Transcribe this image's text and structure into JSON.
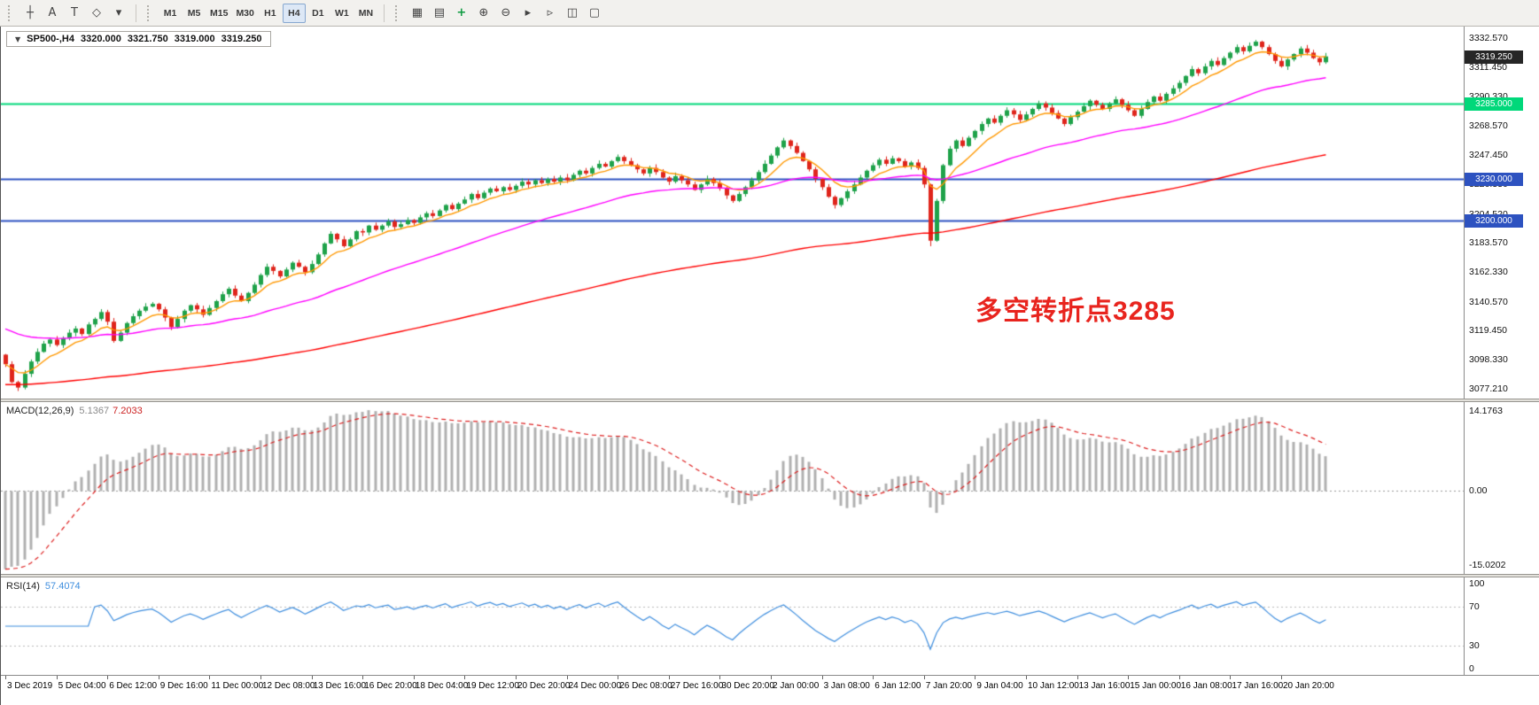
{
  "icons": {
    "collapse_arrow": "▼"
  },
  "toolbar": {
    "left_tools": [
      {
        "name": "crosshair",
        "glyph": "┼"
      },
      {
        "name": "text-label",
        "glyph": "A"
      },
      {
        "name": "text",
        "glyph": "T"
      },
      {
        "name": "shapes",
        "glyph": "◇"
      },
      {
        "name": "shapes-dropdown",
        "glyph": "▾"
      }
    ],
    "timeframes": [
      "M1",
      "M5",
      "M15",
      "M30",
      "H1",
      "H4",
      "D1",
      "W1",
      "MN"
    ],
    "active_timeframe": "H4",
    "right_tools": [
      {
        "name": "new-chart",
        "glyph": "▦"
      },
      {
        "name": "profiles",
        "glyph": "▤"
      },
      {
        "name": "indicators",
        "glyph": "+",
        "color": "#0c9a40"
      },
      {
        "name": "zoom-in",
        "glyph": "⊕"
      },
      {
        "name": "zoom-out",
        "glyph": "⊖"
      },
      {
        "name": "auto-scroll",
        "glyph": "▸"
      },
      {
        "name": "chart-shift",
        "glyph": "▹"
      },
      {
        "name": "tile-windows",
        "glyph": "◫"
      },
      {
        "name": "cascade-windows",
        "glyph": "▢"
      }
    ]
  },
  "symbol_header": {
    "symbol": "SP500-,H4",
    "open": "3320.000",
    "high": "3321.750",
    "low": "3319.000",
    "close": "3319.250"
  },
  "price_axis": {
    "min": 3070,
    "max": 3341,
    "ticks": [
      "3332.570",
      "3311.450",
      "3290.330",
      "3268.570",
      "3247.450",
      "3226.330",
      "3204.520",
      "3183.570",
      "3162.330",
      "3140.570",
      "3119.450",
      "3098.330",
      "3077.210"
    ]
  },
  "hlines": [
    {
      "price": 3285.0,
      "label": "3285.000",
      "color": "#00d87a",
      "width": 2
    },
    {
      "price": 3230.0,
      "label": "3230.000",
      "color": "#2d52c0",
      "width": 2
    },
    {
      "price": 3200.0,
      "label": "3200.000",
      "color": "#2d52c0",
      "width": 2
    }
  ],
  "current_price": {
    "value": 3319.25,
    "label": "3319.250",
    "bg": "#262626"
  },
  "annotation": {
    "text": "多空转折点3285",
    "color": "#e8241e"
  },
  "macd": {
    "name": "MACD(12,26,9)",
    "value_main": "5.1367",
    "value_signal": "7.2033",
    "axis": {
      "max": "14.1763",
      "zero": "0.00",
      "min": "-15.0202"
    }
  },
  "rsi": {
    "name": "RSI(14)",
    "value": "57.4074",
    "axis": [
      "100",
      "70",
      "30",
      "0"
    ],
    "levels": [
      70,
      30
    ]
  },
  "chart_data": {
    "type": "candlestick",
    "symbol": "SP500-",
    "timeframe": "H4",
    "up_color": "#1fa24a",
    "down_color": "#df251c",
    "bar_step": 7.2,
    "bars_per_time_label": 8,
    "first_open": 3102,
    "low_overrides": {
      "145": 3181
    },
    "time_labels": [
      "3 Dec 2019",
      "5 Dec 04:00",
      "6 Dec 12:00",
      "9 Dec 16:00",
      "11 Dec 00:00",
      "12 Dec 08:00",
      "13 Dec 16:00",
      "16 Dec 20:00",
      "18 Dec 04:00",
      "19 Dec 12:00",
      "20 Dec 20:00",
      "24 Dec 00:00",
      "26 Dec 08:00",
      "27 Dec 16:00",
      "30 Dec 20:00",
      "2 Jan 00:00",
      "3 Jan 08:00",
      "6 Jan 12:00",
      "7 Jan 20:00",
      "9 Jan 04:00",
      "10 Jan 12:00",
      "13 Jan 16:00",
      "15 Jan 00:00",
      "16 Jan 08:00",
      "17 Jan 16:00",
      "20 Jan 20:00"
    ],
    "closes": [
      3095,
      3082,
      3078,
      3088,
      3097,
      3104,
      3110,
      3113,
      3109,
      3114,
      3118,
      3121,
      3117,
      3124,
      3128,
      3133,
      3126,
      3112,
      3118,
      3125,
      3130,
      3134,
      3137,
      3139,
      3135,
      3129,
      3122,
      3128,
      3134,
      3138,
      3135,
      3131,
      3136,
      3141,
      3146,
      3150,
      3145,
      3141,
      3147,
      3153,
      3160,
      3166,
      3163,
      3159,
      3164,
      3169,
      3166,
      3162,
      3168,
      3175,
      3183,
      3190,
      3186,
      3181,
      3186,
      3192,
      3191,
      3196,
      3193,
      3196,
      3199,
      3195,
      3197,
      3200,
      3198,
      3202,
      3205,
      3203,
      3207,
      3211,
      3208,
      3212,
      3215,
      3219,
      3216,
      3220,
      3223,
      3221,
      3224,
      3222,
      3225,
      3228,
      3226,
      3229,
      3227,
      3230,
      3228,
      3231,
      3229,
      3233,
      3236,
      3234,
      3238,
      3241,
      3239,
      3243,
      3246,
      3243,
      3240,
      3237,
      3234,
      3238,
      3235,
      3231,
      3228,
      3232,
      3229,
      3226,
      3222,
      3226,
      3230,
      3227,
      3223,
      3218,
      3214,
      3219,
      3224,
      3229,
      3235,
      3241,
      3247,
      3253,
      3258,
      3254,
      3249,
      3243,
      3237,
      3230,
      3224,
      3217,
      3211,
      3216,
      3221,
      3226,
      3231,
      3236,
      3240,
      3244,
      3241,
      3245,
      3243,
      3239,
      3242,
      3238,
      3226,
      3185,
      3214,
      3240,
      3252,
      3258,
      3254,
      3260,
      3265,
      3270,
      3274,
      3271,
      3276,
      3280,
      3277,
      3273,
      3277,
      3281,
      3285,
      3282,
      3278,
      3274,
      3270,
      3275,
      3279,
      3283,
      3287,
      3284,
      3281,
      3285,
      3288,
      3284,
      3280,
      3276,
      3281,
      3286,
      3290,
      3287,
      3292,
      3296,
      3300,
      3305,
      3310,
      3307,
      3312,
      3316,
      3313,
      3318,
      3322,
      3326,
      3323,
      3327,
      3330,
      3326,
      3321,
      3316,
      3312,
      3317,
      3321,
      3325,
      3322,
      3318,
      3315,
      3319.25
    ],
    "moving_averages": [
      {
        "name": "fast-ema",
        "period": 8,
        "color": "#ff9800",
        "seed": null
      },
      {
        "name": "mid-ema",
        "period": 42,
        "color": "#ff00ff",
        "seed": 3122
      },
      {
        "name": "slow-ema",
        "period": 160,
        "color": "#ff0000",
        "seed": 3080
      }
    ],
    "indicators": {
      "macd": {
        "fast": 12,
        "slow": 26,
        "signal": 9,
        "histogram_color": "#b0b0b0",
        "signal_color": "#dd2020"
      },
      "rsi": {
        "period": 14,
        "color": "#3f8ede"
      }
    }
  }
}
